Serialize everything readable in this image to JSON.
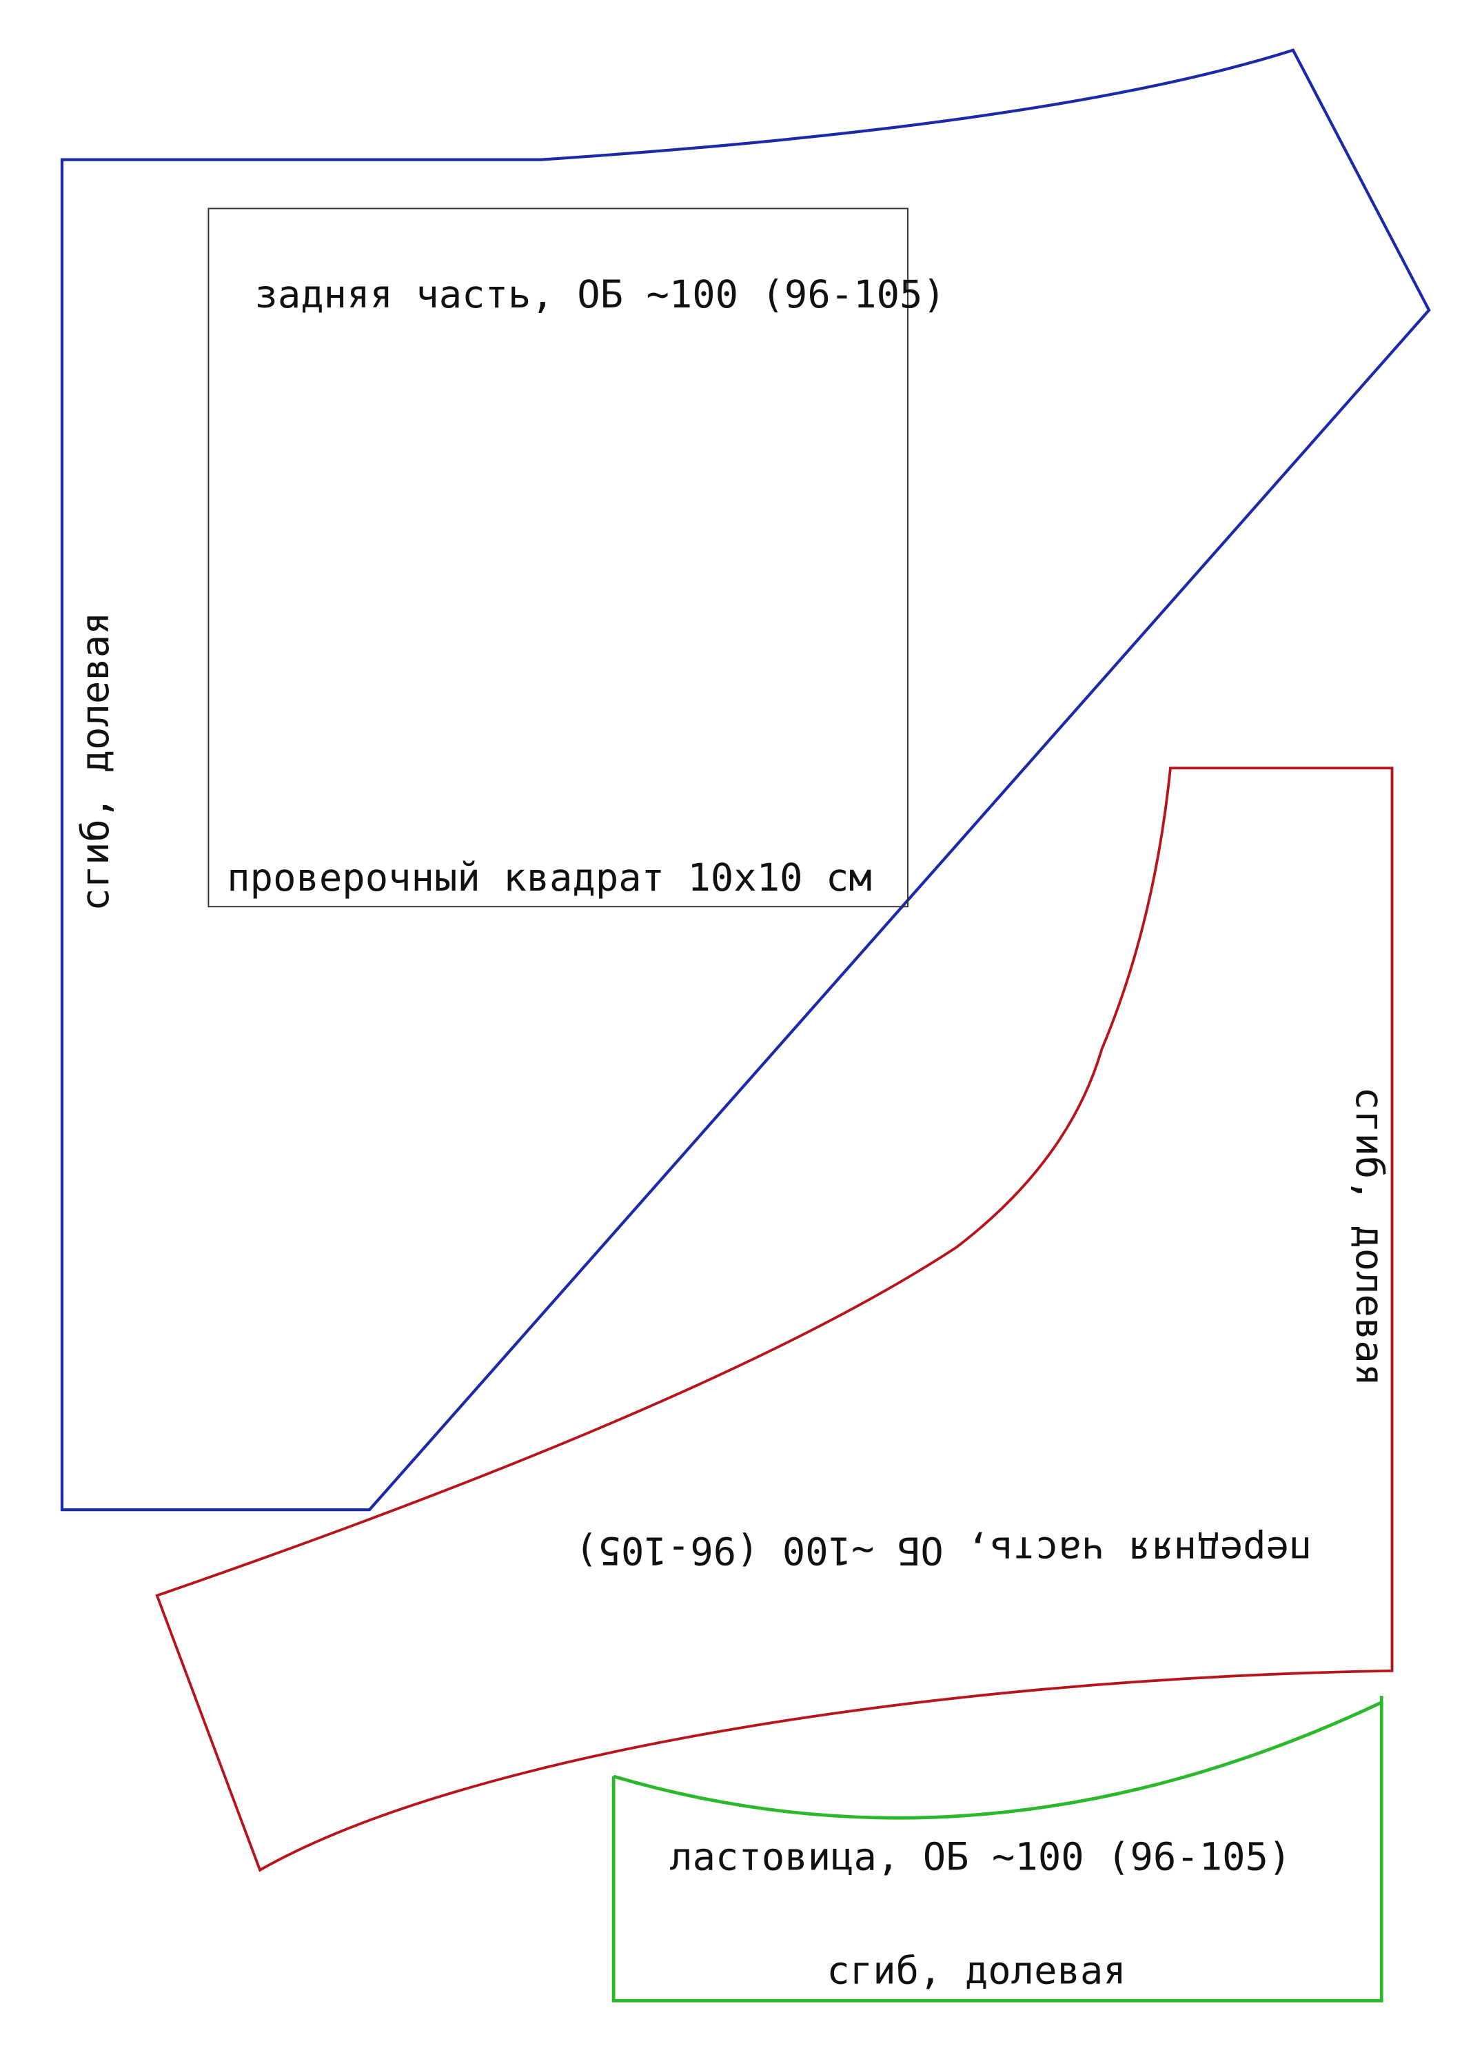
{
  "back_piece": {
    "label": "задняя часть, ОБ ~100 (96-105)",
    "fold_label": "сгиб, долевая"
  },
  "check_square": {
    "label": "проверочный квадрат 10x10 см"
  },
  "front_piece": {
    "label": "передняя часть, ОБ ~100 (96-105)",
    "fold_label": "сгиб, долевая"
  },
  "gusset": {
    "label": "ластовица, ОБ ~100 (96-105)",
    "fold_label": "сгиб, долевая"
  }
}
